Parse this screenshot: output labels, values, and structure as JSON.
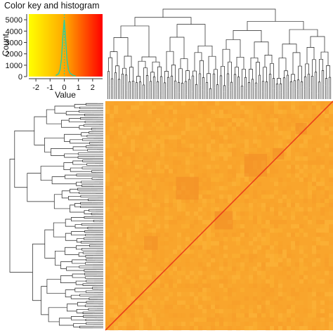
{
  "chart_data": {
    "type": "heatmap",
    "title": "Color key and histogram",
    "color_key": {
      "xlabel": "Value",
      "ylabel": "Count",
      "x_ticks": [
        "-2",
        "-1",
        "0",
        "1",
        "2"
      ],
      "x_tick_values": [
        -2,
        -1,
        0,
        1,
        2
      ],
      "y_ticks": [
        "0",
        "1000",
        "2000",
        "3000",
        "4000",
        "5000"
      ],
      "y_tick_values": [
        0,
        1000,
        2000,
        3000,
        4000,
        5000
      ],
      "xlim": [
        -2.5,
        2.7
      ],
      "ylim": [
        0,
        5500
      ],
      "colors": [
        "#ffff00",
        "#ffa500",
        "#ff0000"
      ],
      "histogram_color": "#33cc99",
      "histogram": {
        "x": [
          -0.6,
          -0.4,
          -0.3,
          -0.2,
          -0.1,
          0.0,
          0.1,
          0.2,
          0.3,
          0.4,
          0.6,
          0.8
        ],
        "counts": [
          100,
          250,
          600,
          1500,
          3500,
          5000,
          3200,
          1400,
          600,
          300,
          120,
          50
        ]
      }
    },
    "heatmap": {
      "dendrograms": [
        "top",
        "left"
      ],
      "base_color": "#f9a52c",
      "diagonal_color": "#e8351a",
      "cluster_blocks_color": "#f28c26"
    }
  }
}
